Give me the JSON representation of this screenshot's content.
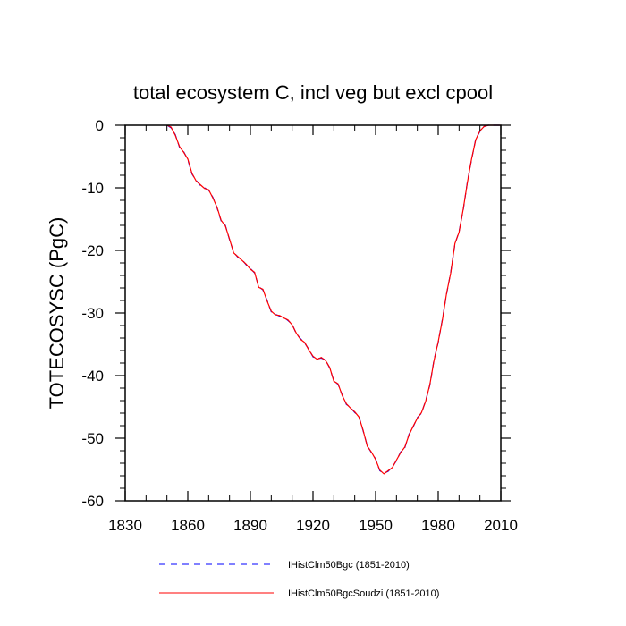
{
  "chart_data": {
    "type": "line",
    "title": "total ecosystem C, incl veg but excl cpool",
    "xlabel": "",
    "ylabel": "TOTECOSYSC  (PgC)",
    "xlim": [
      1830,
      2010
    ],
    "ylim": [
      -60,
      0
    ],
    "xticks": [
      "1830",
      "1860",
      "1890",
      "1920",
      "1950",
      "1980",
      "2010"
    ],
    "yticks": [
      "0",
      "-10",
      "-20",
      "-30",
      "-40",
      "-50",
      "-60"
    ],
    "grid": false,
    "legend_position": "bottom",
    "series": [
      {
        "name": "IHistClm50Bgc (1851-2010)",
        "color": "#0000ff",
        "dash": "dashed",
        "x": [
          1850,
          1852,
          1854,
          1856,
          1858,
          1860,
          1862,
          1864,
          1866,
          1868,
          1870,
          1872,
          1874,
          1876,
          1878,
          1880,
          1882,
          1884,
          1886,
          1888,
          1890,
          1892,
          1894,
          1896,
          1898,
          1900,
          1902,
          1904,
          1906,
          1908,
          1910,
          1912,
          1914,
          1916,
          1918,
          1920,
          1922,
          1924,
          1926,
          1928,
          1930,
          1932,
          1934,
          1936,
          1938,
          1940,
          1942,
          1944,
          1946,
          1948,
          1950,
          1952,
          1954,
          1956,
          1958,
          1960,
          1962,
          1964,
          1966,
          1968,
          1970,
          1972,
          1974,
          1976,
          1978,
          1980,
          1982,
          1984,
          1986,
          1988,
          1990,
          1992,
          1994,
          1996,
          1998,
          2000,
          2002,
          2004,
          2006,
          2008,
          2010
        ],
        "y": [
          0,
          -0.4,
          -1.5,
          -3.5,
          -4.2,
          -5.5,
          -7.8,
          -8.8,
          -9.6,
          -10.0,
          -10.4,
          -11.5,
          -13.2,
          -15.3,
          -16.0,
          -18.3,
          -20.3,
          -21.1,
          -21.5,
          -22.3,
          -22.9,
          -23.6,
          -25.8,
          -26.3,
          -28.0,
          -29.8,
          -30.2,
          -30.5,
          -30.7,
          -31.2,
          -31.8,
          -33.3,
          -34.1,
          -34.8,
          -35.8,
          -37.0,
          -37.3,
          -37.2,
          -37.5,
          -38.8,
          -40.8,
          -41.4,
          -43.1,
          -44.6,
          -45.1,
          -45.9,
          -46.5,
          -48.8,
          -51.2,
          -52.3,
          -53.3,
          -55.2,
          -55.6,
          -55.3,
          -54.6,
          -53.6,
          -52.2,
          -51.5,
          -49.4,
          -48.2,
          -46.7,
          -46.0,
          -44.0,
          -41.5,
          -37.5,
          -34.7,
          -31.0,
          -27.0,
          -23.5,
          -19.0,
          -17.0,
          -13.5,
          -9.0,
          -5.5,
          -2.2,
          -1.0,
          -0.2,
          0,
          0,
          0,
          0
        ]
      },
      {
        "name": "IHistClm50BgcSoudzi (1851-2010)",
        "color": "#ff0000",
        "dash": "solid",
        "x": [
          1850,
          1852,
          1854,
          1856,
          1858,
          1860,
          1862,
          1864,
          1866,
          1868,
          1870,
          1872,
          1874,
          1876,
          1878,
          1880,
          1882,
          1884,
          1886,
          1888,
          1890,
          1892,
          1894,
          1896,
          1898,
          1900,
          1902,
          1904,
          1906,
          1908,
          1910,
          1912,
          1914,
          1916,
          1918,
          1920,
          1922,
          1924,
          1926,
          1928,
          1930,
          1932,
          1934,
          1936,
          1938,
          1940,
          1942,
          1944,
          1946,
          1948,
          1950,
          1952,
          1954,
          1956,
          1958,
          1960,
          1962,
          1964,
          1966,
          1968,
          1970,
          1972,
          1974,
          1976,
          1978,
          1980,
          1982,
          1984,
          1986,
          1988,
          1990,
          1992,
          1994,
          1996,
          1998,
          2000,
          2002,
          2004,
          2006,
          2008,
          2010
        ],
        "y": [
          0,
          -0.3,
          -1.6,
          -3.4,
          -4.3,
          -5.4,
          -7.7,
          -8.9,
          -9.5,
          -10.1,
          -10.3,
          -11.6,
          -13.1,
          -15.2,
          -16.1,
          -18.2,
          -20.4,
          -21.0,
          -21.6,
          -22.2,
          -23.0,
          -23.5,
          -25.9,
          -26.2,
          -28.1,
          -29.7,
          -30.3,
          -30.4,
          -30.8,
          -31.1,
          -31.9,
          -33.2,
          -34.2,
          -34.7,
          -35.9,
          -36.9,
          -37.4,
          -37.1,
          -37.6,
          -38.7,
          -40.9,
          -41.3,
          -43.2,
          -44.5,
          -45.2,
          -45.8,
          -46.6,
          -48.7,
          -51.3,
          -52.2,
          -53.4,
          -55.1,
          -55.7,
          -55.2,
          -54.7,
          -53.5,
          -52.3,
          -51.4,
          -49.5,
          -48.1,
          -46.8,
          -45.9,
          -44.1,
          -41.4,
          -37.6,
          -34.6,
          -31.1,
          -26.9,
          -23.6,
          -18.9,
          -17.1,
          -13.4,
          -9.1,
          -5.4,
          -2.3,
          -0.9,
          -0.2,
          0,
          0,
          0,
          0
        ]
      }
    ]
  }
}
